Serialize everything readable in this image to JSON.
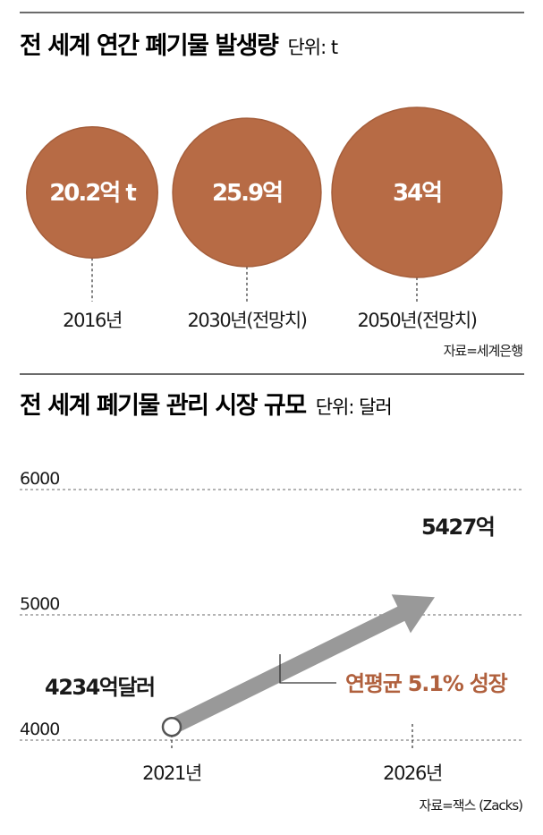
{
  "colors": {
    "bubble": "#b76b45",
    "bubble_stroke": "#a55e3b",
    "arrow": "#999999",
    "accent_text": "#b0603d",
    "rule": "#6b6b6b",
    "grid": "#9a9a9a"
  },
  "section1": {
    "title": "전 세계 연간 폐기물 발생량",
    "unit": "단위: t",
    "source": "자료=세계은행"
  },
  "section2": {
    "title": "전 세계 폐기물 관리 시장 규모",
    "unit": "단위: 달러",
    "source": "자료=잭스 (Zacks)",
    "growth_label": "연평균 5.1% 성장"
  },
  "chart_data": [
    {
      "type": "bubble",
      "title": "전 세계 연간 폐기물 발생량",
      "unit": "t",
      "categories": [
        "2016년",
        "2030년(전망치)",
        "2050년(전망치)"
      ],
      "values": [
        20.2,
        25.9,
        34
      ],
      "data_labels": [
        "20.2억 t",
        "25.9억",
        "34억"
      ],
      "source": "자료=세계은행"
    },
    {
      "type": "line",
      "title": "전 세계 폐기물 관리 시장 규모",
      "unit": "달러",
      "x": [
        "2021년",
        "2026년"
      ],
      "values": [
        4234,
        5427
      ],
      "data_labels": [
        "4234억달러",
        "5427억"
      ],
      "yticks": [
        "4000",
        "5000",
        "6000"
      ],
      "ylim": [
        4000,
        6000
      ],
      "grid": true,
      "annotation": "연평균 5.1% 성장",
      "source": "자료=잭스 (Zacks)"
    }
  ]
}
